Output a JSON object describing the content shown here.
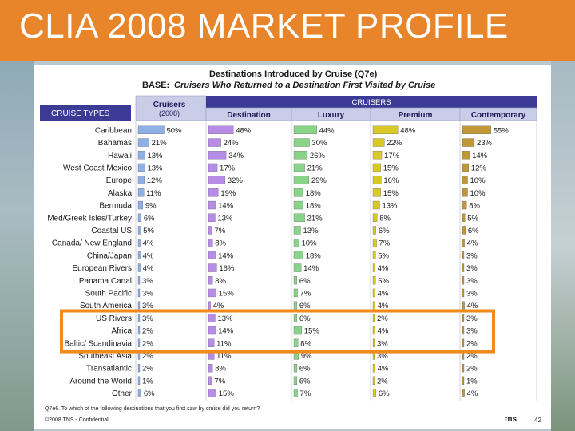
{
  "slide": {
    "title": "CLIA 2008 MARKET PROFILE",
    "page_number": "42",
    "footer_note": "©2008 TNS - Confidential",
    "question_note": "Q7e6. To which of the following destinations that you first saw by cruise did you return?",
    "logo_text": "tns"
  },
  "colors": {
    "title_bar": "#e8842a",
    "header_dark": "#3b3b96",
    "header_light": "#c9cde8",
    "highlight_box": "#f28a1e",
    "cruisers_2008": "#8fb0e6",
    "destination": "#b68ce6",
    "luxury": "#88d488",
    "premium": "#d8c828",
    "contemporary": "#c09838"
  },
  "chart_data": {
    "type": "bar",
    "title": "Destinations Introduced by Cruise (Q7e)",
    "subtitle_label": "BASE:",
    "subtitle": "Cruisers Who Returned to a Destination First Visited by Cruise",
    "row_header": "CRUISE TYPES",
    "group_header": "CRUISERS",
    "categories": [
      "Caribbean",
      "Bahamas",
      "Hawaii",
      "West Coast Mexico",
      "Europe",
      "Alaska",
      "Bermuda",
      "Med/Greek Isles/Turkey",
      "Coastal US",
      "Canada/ New England",
      "China/Japan",
      "European Rivers",
      "Panama Canal",
      "South Pacific",
      "South America",
      "US Rivers",
      "Africa",
      "Baltic/ Scandinavia",
      "Southeast Asia",
      "Transatlantic",
      "Around the World",
      "Other"
    ],
    "series": [
      {
        "name": "Cruisers (2008)",
        "values": [
          50,
          21,
          13,
          13,
          12,
          11,
          9,
          6,
          5,
          4,
          4,
          4,
          3,
          3,
          3,
          3,
          2,
          2,
          2,
          2,
          1,
          6
        ]
      },
      {
        "name": "Destination",
        "values": [
          48,
          24,
          34,
          17,
          32,
          19,
          14,
          13,
          7,
          8,
          14,
          16,
          8,
          15,
          4,
          13,
          14,
          11,
          11,
          8,
          7,
          15
        ]
      },
      {
        "name": "Luxury",
        "values": [
          44,
          30,
          26,
          21,
          29,
          18,
          18,
          21,
          13,
          10,
          18,
          14,
          6,
          7,
          6,
          6,
          15,
          8,
          9,
          6,
          6,
          7
        ]
      },
      {
        "name": "Premium",
        "values": [
          48,
          22,
          17,
          15,
          16,
          15,
          13,
          8,
          6,
          7,
          5,
          4,
          5,
          4,
          4,
          2,
          4,
          3,
          3,
          4,
          2,
          6
        ]
      },
      {
        "name": "Contemporary",
        "values": [
          55,
          23,
          14,
          12,
          10,
          10,
          8,
          5,
          6,
          4,
          3,
          3,
          3,
          3,
          4,
          3,
          3,
          2,
          2,
          2,
          1,
          4
        ]
      }
    ],
    "highlighted_categories": [
      "US Rivers",
      "Africa",
      "Baltic/ Scandinavia"
    ]
  }
}
